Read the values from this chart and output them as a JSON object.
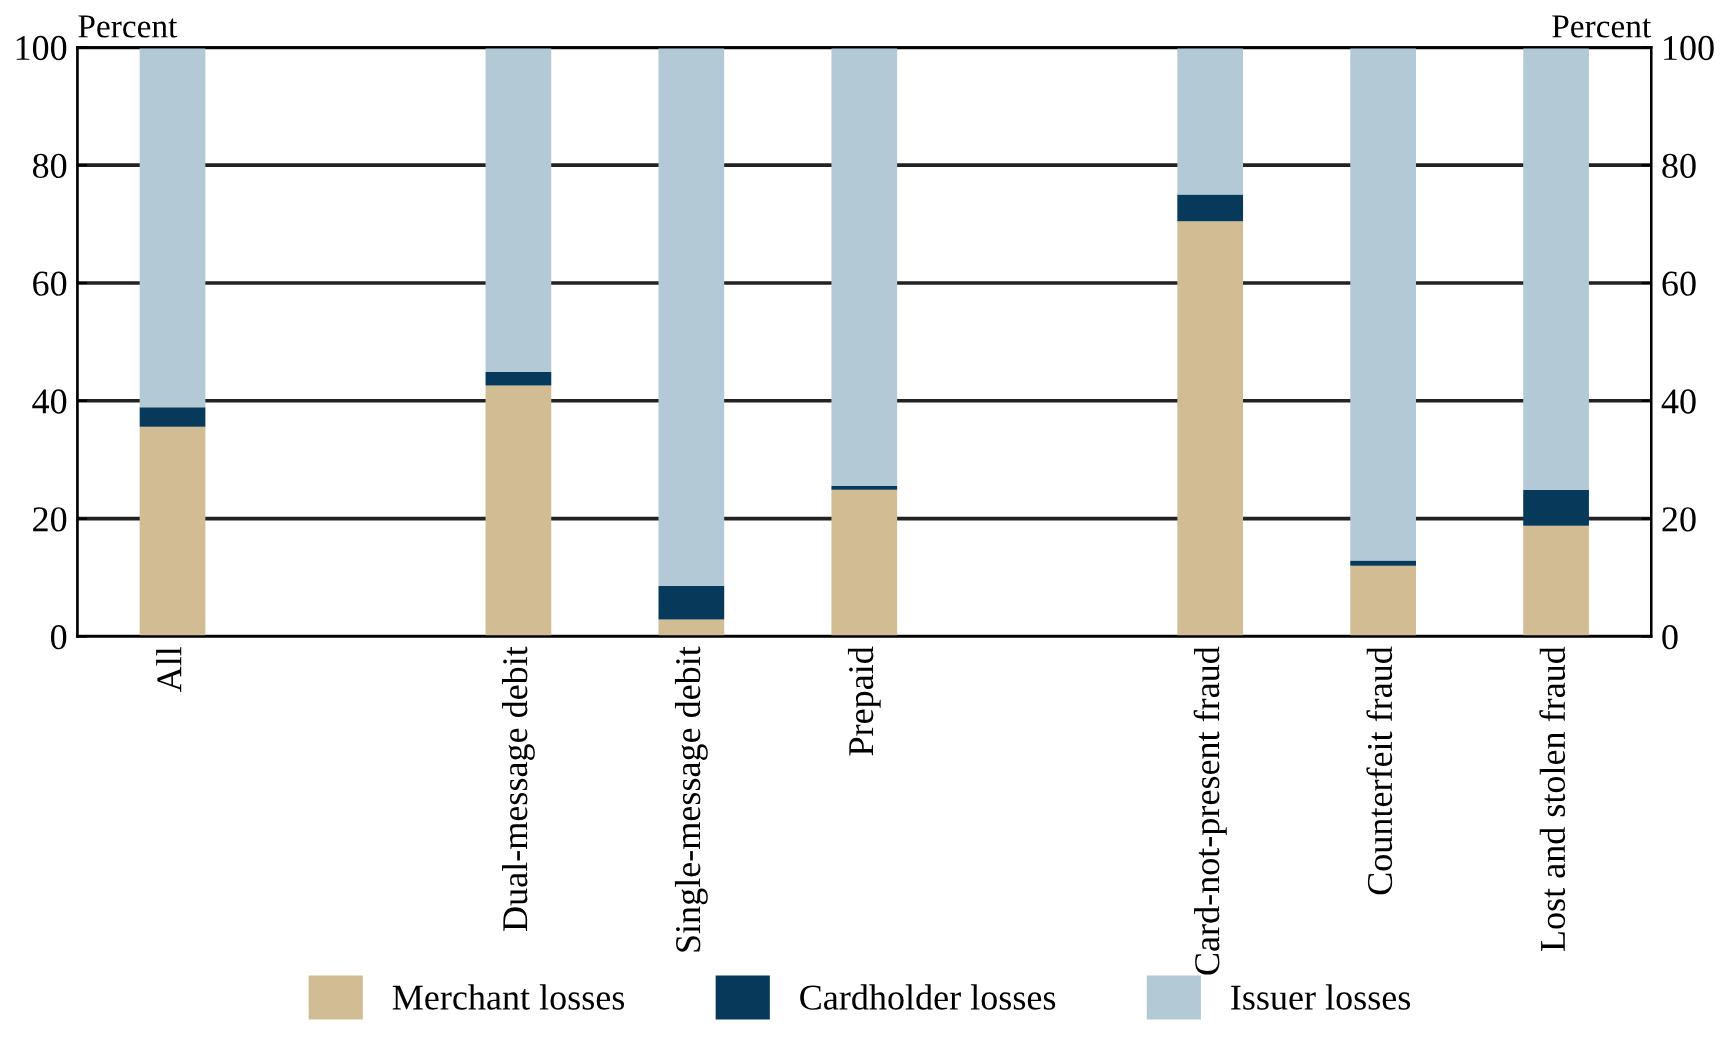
{
  "chart_data": {
    "type": "bar",
    "stacked": true,
    "ylabel": "Percent",
    "y2label": "Percent",
    "categories": [
      "All",
      null,
      "Dual-message debit",
      "Single-message debit",
      "Prepaid",
      null,
      "Card-not-present fraud",
      "Counterfeit fraud",
      "Lost and stolen fraud"
    ],
    "series": [
      {
        "name": "Merchant losses",
        "color": "#d2bc93",
        "values": [
          35.6,
          null,
          42.6,
          2.9,
          24.9,
          null,
          70.5,
          12.0,
          18.8
        ]
      },
      {
        "name": "Cardholder losses",
        "color": "#073a5a",
        "values": [
          3.3,
          null,
          2.3,
          5.7,
          0.7,
          null,
          4.5,
          0.9,
          6.1
        ]
      },
      {
        "name": "Issuer losses",
        "color": "#b3c9d6",
        "values": [
          61.1,
          null,
          55.1,
          91.4,
          74.4,
          null,
          25.0,
          87.1,
          75.1
        ]
      }
    ],
    "ylim": [
      0,
      100
    ],
    "yticks": [
      0,
      20,
      40,
      60,
      80,
      100
    ],
    "y2lim": [
      0,
      100
    ],
    "y2ticks": [
      0,
      20,
      40,
      60,
      80,
      100
    ],
    "grid": "y",
    "legend": "bottom"
  }
}
